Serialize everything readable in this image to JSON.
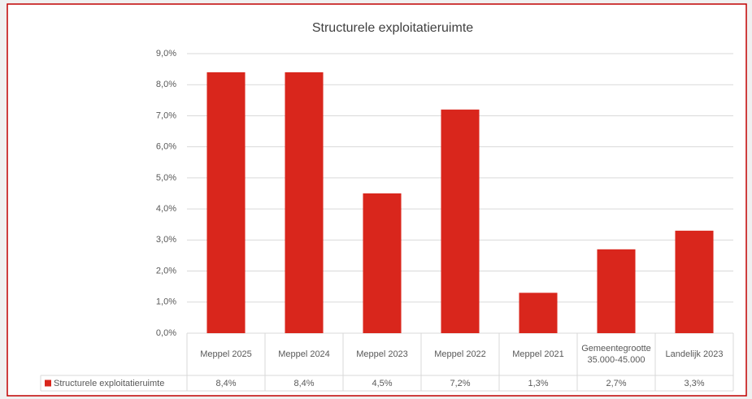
{
  "chart_data": {
    "type": "bar",
    "title": "Structurele exploitatieruimte",
    "categories": [
      "Meppel 2025",
      "Meppel 2024",
      "Meppel 2023",
      "Meppel 2022",
      "Meppel 2021",
      "Gemeentegrootte 35.000-45.000",
      "Landelijk 2023"
    ],
    "series": [
      {
        "name": "Structurele exploitatieruimte",
        "color": "#d9261c",
        "values": [
          8.4,
          8.4,
          4.5,
          7.2,
          1.3,
          2.7,
          3.3
        ],
        "value_labels": [
          "8,4%",
          "8,4%",
          "4,5%",
          "7,2%",
          "1,3%",
          "2,7%",
          "3,3%"
        ]
      }
    ],
    "ylim": [
      0,
      9
    ],
    "yticks": [
      {
        "value": 0,
        "label": "0,0%"
      },
      {
        "value": 1,
        "label": "1,0%"
      },
      {
        "value": 2,
        "label": "2,0%"
      },
      {
        "value": 3,
        "label": "3,0%"
      },
      {
        "value": 4,
        "label": "4,0%"
      },
      {
        "value": 5,
        "label": "5,0%"
      },
      {
        "value": 6,
        "label": "6,0%"
      },
      {
        "value": 7,
        "label": "7,0%"
      },
      {
        "value": 8,
        "label": "8,0%"
      },
      {
        "value": 9,
        "label": "9,0%"
      }
    ],
    "grid": true
  }
}
